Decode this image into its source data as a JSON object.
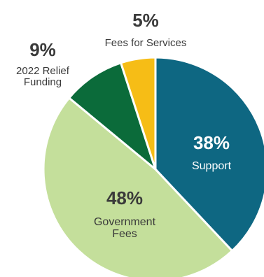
{
  "chart_data": {
    "type": "pie",
    "slices": [
      {
        "label": "Support",
        "value": 38,
        "percent_label": "38%",
        "color": "#0e6782"
      },
      {
        "label": "Government Fees",
        "value": 48,
        "percent_label": "48%",
        "color": "#c4df9b"
      },
      {
        "label": "2022 Relief Funding",
        "value": 9,
        "percent_label": "9%",
        "color": "#0b6b3a"
      },
      {
        "label": "Fees for Services",
        "value": 5,
        "percent_label": "5%",
        "color": "#f6bd16"
      }
    ]
  }
}
